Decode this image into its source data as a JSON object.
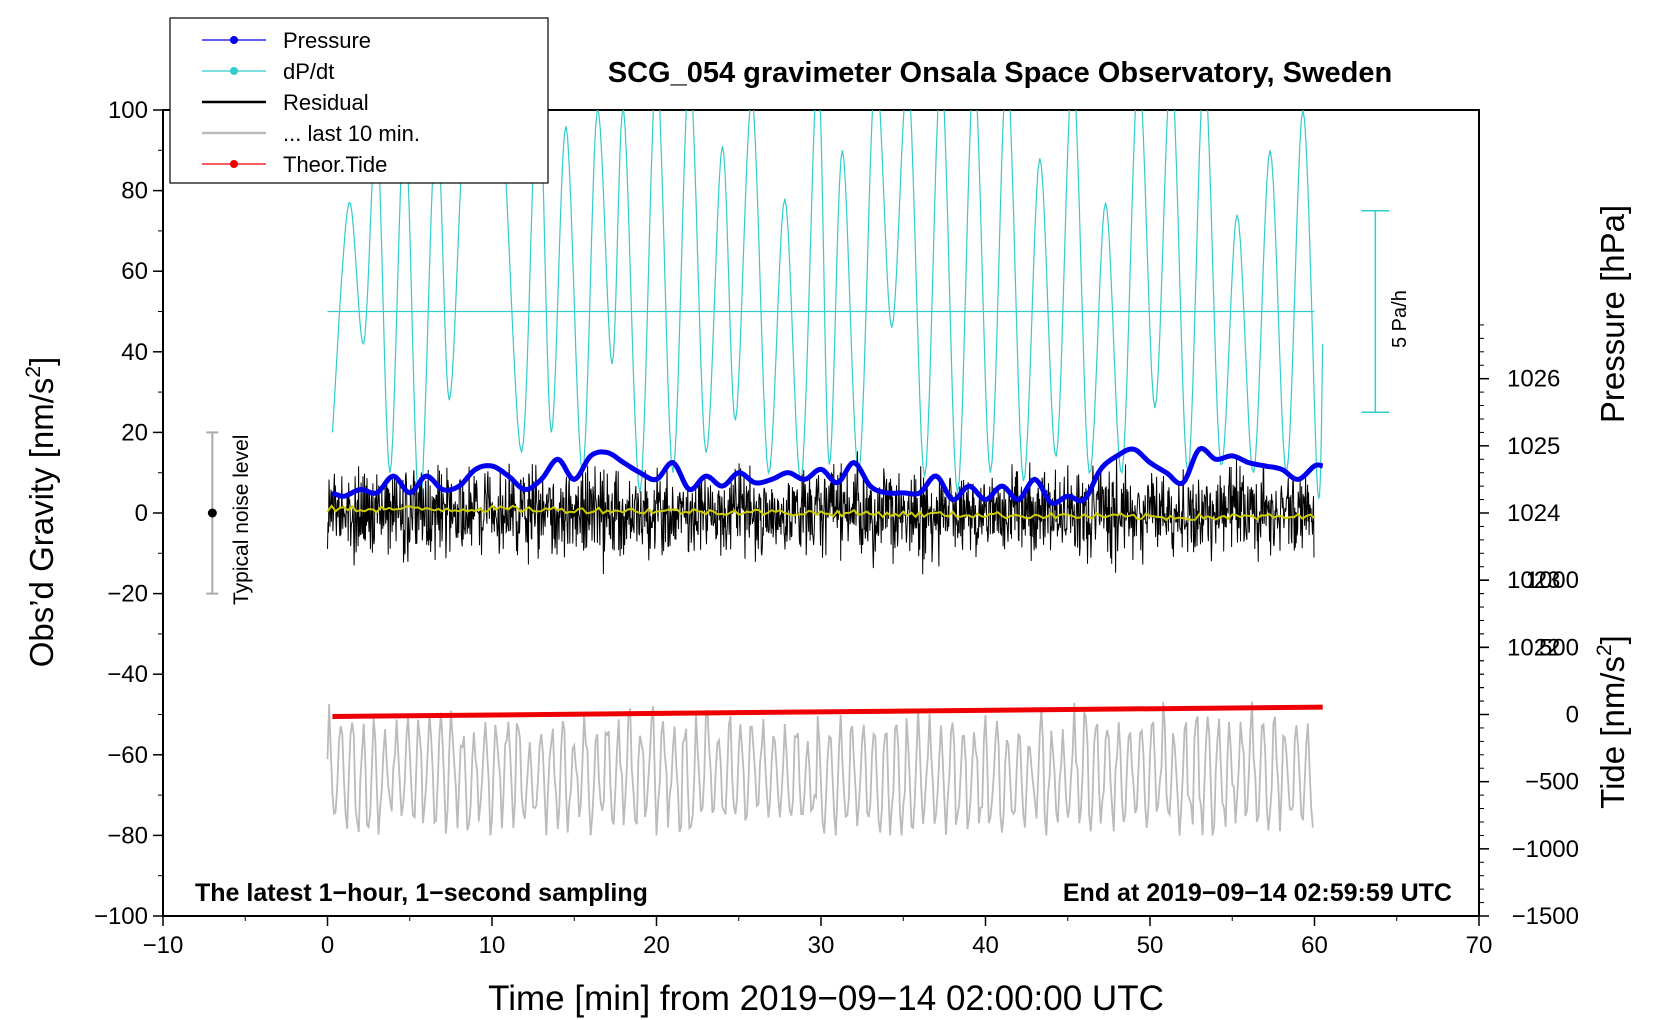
{
  "chart_data": {
    "type": "line",
    "title": "SCG_054 gravimeter Onsala Space Observatory, Sweden",
    "xlabel": "Time [min] from 2019−09−14 02:00:00 UTC",
    "ylabel_left_main": "Obs’d Gravity [nm/s",
    "ylabel_left_sup": "2",
    "ylabel_left_end": "]",
    "ylabel_right_pressure": "Pressure [hPa]",
    "ylabel_right_tide_main": "Tide [nm/s",
    "ylabel_right_tide_sup": "2",
    "ylabel_right_tide_end": "]",
    "xlim": [
      -10,
      70
    ],
    "ylim": [
      -100,
      100
    ],
    "pressure_lim": [
      1018,
      1030
    ],
    "tide_lim": [
      -1500,
      4500
    ],
    "x_ticks": [
      "−10",
      "0",
      "10",
      "20",
      "30",
      "40",
      "50",
      "60",
      "70"
    ],
    "y_ticks": [
      "−100",
      "−80",
      "−60",
      "−40",
      "−20",
      "0",
      "20",
      "40",
      "60",
      "80",
      "100"
    ],
    "pressure_ticks": [
      "1022",
      "1023",
      "1024",
      "1025",
      "1026"
    ],
    "tide_ticks": [
      "−1500",
      "−1000",
      "−500",
      "0",
      "500",
      "1000"
    ],
    "annotation_left": "The latest 1−hour, 1−second sampling",
    "annotation_right": "End at 2019−09−14 02:59:59 UTC",
    "noise_bar_label": "Typical noise level",
    "noise_bar_range": [
      -20,
      20
    ],
    "noise_bar_x": -7,
    "dpdt_bar_label": "5 Pa/h",
    "dpdt_baseline": 50,
    "legend": [
      {
        "label": "Pressure",
        "color": "#0000ee",
        "marker": true
      },
      {
        "label": "dP/dt",
        "color": "#33cccc",
        "marker": true
      },
      {
        "label": "Residual",
        "color": "#000000",
        "marker": false
      },
      {
        "label": "... last 10 min.",
        "color": "#bbbbbb",
        "marker": false
      },
      {
        "label": "Theor.Tide",
        "color": "#ee0000",
        "marker": true
      }
    ],
    "series": [
      {
        "name": "Pressure",
        "axis": "pressure",
        "color": "#0000ee",
        "x": [
          0.3,
          1,
          2,
          3,
          4,
          5,
          6,
          7,
          8,
          9,
          10,
          11,
          12,
          13,
          14,
          15,
          16,
          17,
          18,
          19,
          20,
          21,
          22,
          23,
          24,
          25,
          26,
          27,
          28,
          29,
          30,
          31,
          32,
          33,
          34,
          35,
          36,
          37,
          38,
          39,
          40,
          41,
          42,
          43,
          44,
          45,
          46,
          47,
          48,
          49,
          50,
          51,
          52,
          53,
          54,
          55,
          56,
          57,
          58,
          59,
          60,
          60.5
        ],
        "values": [
          1024.3,
          1024.25,
          1024.35,
          1024.3,
          1024.55,
          1024.3,
          1024.55,
          1024.35,
          1024.4,
          1024.65,
          1024.7,
          1024.55,
          1024.35,
          1024.5,
          1024.8,
          1024.5,
          1024.85,
          1024.9,
          1024.75,
          1024.6,
          1024.5,
          1024.75,
          1024.35,
          1024.55,
          1024.4,
          1024.6,
          1024.45,
          1024.5,
          1024.6,
          1024.5,
          1024.65,
          1024.45,
          1024.75,
          1024.4,
          1024.3,
          1024.3,
          1024.3,
          1024.55,
          1024.2,
          1024.4,
          1024.2,
          1024.4,
          1024.2,
          1024.5,
          1024.15,
          1024.25,
          1024.2,
          1024.65,
          1024.85,
          1024.95,
          1024.75,
          1024.6,
          1024.45,
          1024.95,
          1024.8,
          1024.85,
          1024.75,
          1024.7,
          1024.65,
          1024.5,
          1024.7,
          1024.7
        ]
      },
      {
        "name": "dP/dt",
        "axis": "gravity",
        "color": "#33cccc",
        "x": [
          0.3,
          1.3,
          2.2,
          3.0,
          3.8,
          4.7,
          5.6,
          6.6,
          7.4,
          8.3,
          9.2,
          10.5,
          11.8,
          12.8,
          13.6,
          14.5,
          15.5,
          16.4,
          17.3,
          18.0,
          19.0,
          20.0,
          21.0,
          22.0,
          23.0,
          24.0,
          24.8,
          25.8,
          26.8,
          27.8,
          28.8,
          29.8,
          30.5,
          31.3,
          32.3,
          33.3,
          34.3,
          35.3,
          36.3,
          37.3,
          38.3,
          39.3,
          40.3,
          41.3,
          42.3,
          43.3,
          44.3,
          45.3,
          46.3,
          47.3,
          48.3,
          49.3,
          50.3,
          51.3,
          52.3,
          53.3,
          54.3,
          55.3,
          56.3,
          57.3,
          58.3,
          59.3,
          60.2,
          60.5
        ],
        "values": [
          20,
          77,
          42,
          95,
          10,
          97,
          0,
          98,
          28,
          96,
          110,
          105,
          15,
          110,
          20,
          96,
          10,
          100,
          37,
          100,
          5,
          110,
          10,
          110,
          15,
          91,
          23,
          103,
          10,
          78,
          8,
          110,
          12,
          90,
          10,
          110,
          46,
          108,
          9,
          110,
          5,
          110,
          10,
          110,
          8,
          88,
          14,
          110,
          10,
          77,
          10,
          110,
          26,
          110,
          10,
          110,
          12,
          74,
          10,
          90,
          10,
          100,
          5,
          42
        ]
      },
      {
        "name": "Residual",
        "axis": "gravity",
        "color": "#000000",
        "x_range": [
          0,
          60
        ],
        "band": [
          -15,
          15
        ]
      },
      {
        "name": "Residual smoothed",
        "axis": "gravity",
        "color": "#cccc00",
        "x": [
          0,
          10,
          20,
          30,
          40,
          50,
          60
        ],
        "values": [
          1,
          1,
          0.5,
          0,
          -0.5,
          -1,
          -1
        ]
      },
      {
        "name": "... last 10 min.",
        "axis": "gravity",
        "color": "#bbbbbb",
        "x_range": [
          0,
          60
        ],
        "center": -65,
        "band": [
          -80,
          -45
        ]
      },
      {
        "name": "Theor.Tide",
        "axis": "tide",
        "color": "#ee0000",
        "x": [
          0.3,
          60.5
        ],
        "values": [
          -15,
          55
        ]
      }
    ]
  }
}
